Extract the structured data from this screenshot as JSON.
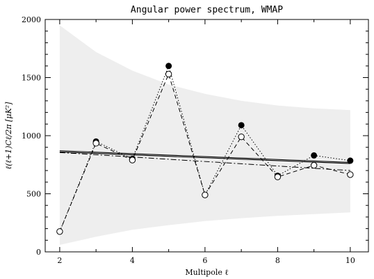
{
  "chart_data": {
    "type": "line",
    "title": "Angular power spectrum, WMAP",
    "xlabel": "Multipole ℓ",
    "ylabel": "ℓ(ℓ+1)Cℓ/2π  [μK²]",
    "xlim": [
      1.6,
      10.5
    ],
    "ylim": [
      0,
      2000
    ],
    "x_ticks": [
      2,
      4,
      6,
      8,
      10
    ],
    "y_ticks": [
      0,
      500,
      1000,
      1500,
      2000
    ],
    "grid": false,
    "legend": "none",
    "band": {
      "x": [
        2,
        3,
        4,
        5,
        6,
        7,
        8,
        9,
        10
      ],
      "upper": [
        1950,
        1720,
        1560,
        1440,
        1360,
        1300,
        1260,
        1235,
        1220
      ],
      "lower": [
        60,
        130,
        190,
        230,
        265,
        290,
        310,
        325,
        340
      ],
      "color": "#eeeeee"
    },
    "series": [
      {
        "x": [
          2,
          3,
          4,
          5,
          6,
          7,
          8,
          9,
          10
        ],
        "values": [
          175,
          950,
          800,
          1600,
          490,
          1090,
          655,
          830,
          785
        ],
        "marker": "filled-circle",
        "linestyle": "dotted"
      },
      {
        "x": [
          2,
          3,
          4,
          5,
          6,
          7,
          8,
          9,
          10
        ],
        "values": [
          175,
          935,
          790,
          1530,
          490,
          990,
          645,
          745,
          665
        ],
        "marker": "open-circle",
        "linestyle": "dashed"
      },
      {
        "x": [
          2,
          10
        ],
        "values": [
          860,
          760
        ],
        "marker": "none",
        "linestyle": "solid"
      },
      {
        "x": [
          2,
          10
        ],
        "values": [
          870,
          770
        ],
        "marker": "none",
        "linestyle": "solid"
      },
      {
        "x": [
          2,
          10
        ],
        "values": [
          855,
          700
        ],
        "marker": "none",
        "linestyle": "dashdot"
      }
    ]
  }
}
